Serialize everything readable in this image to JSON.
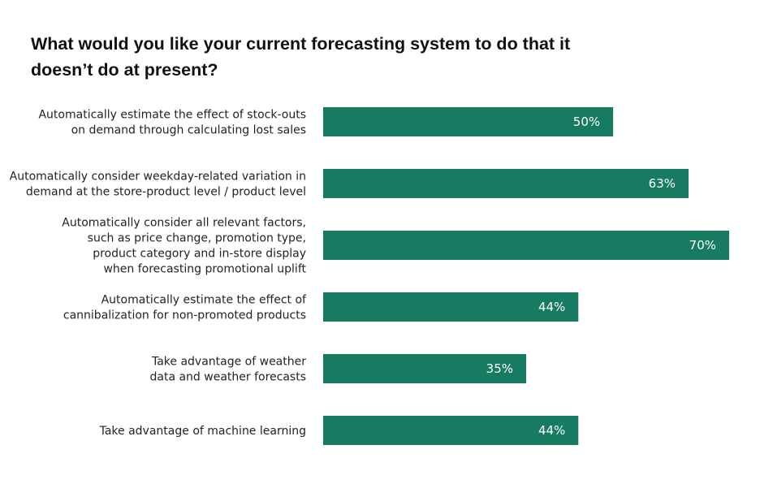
{
  "chart_data": {
    "type": "bar",
    "orientation": "horizontal",
    "title": "What would you like your current forecasting system to do that it doesn’t do at present?",
    "categories": [
      [
        "Automatically estimate the effect of stock-outs",
        "on demand through calculating lost sales"
      ],
      [
        "Automatically consider weekday-related variation in",
        "demand at the store-product level / product level"
      ],
      [
        "Automatically consider all relevant factors,",
        "such as price change, promotion type,",
        "product category and in-store display",
        "when forecasting promotional uplift"
      ],
      [
        "Automatically estimate the effect of",
        "cannibalization for non-promoted products"
      ],
      [
        "Take advantage of weather",
        "data and weather forecasts"
      ],
      [
        "Take advantage of machine learning"
      ]
    ],
    "values": [
      50,
      63,
      70,
      44,
      35,
      44
    ],
    "data_labels": [
      "50%",
      "63%",
      "70%",
      "44%",
      "35%",
      "44%"
    ],
    "xlim": [
      0,
      70
    ],
    "grid": false,
    "bar_color": "#167b60"
  }
}
